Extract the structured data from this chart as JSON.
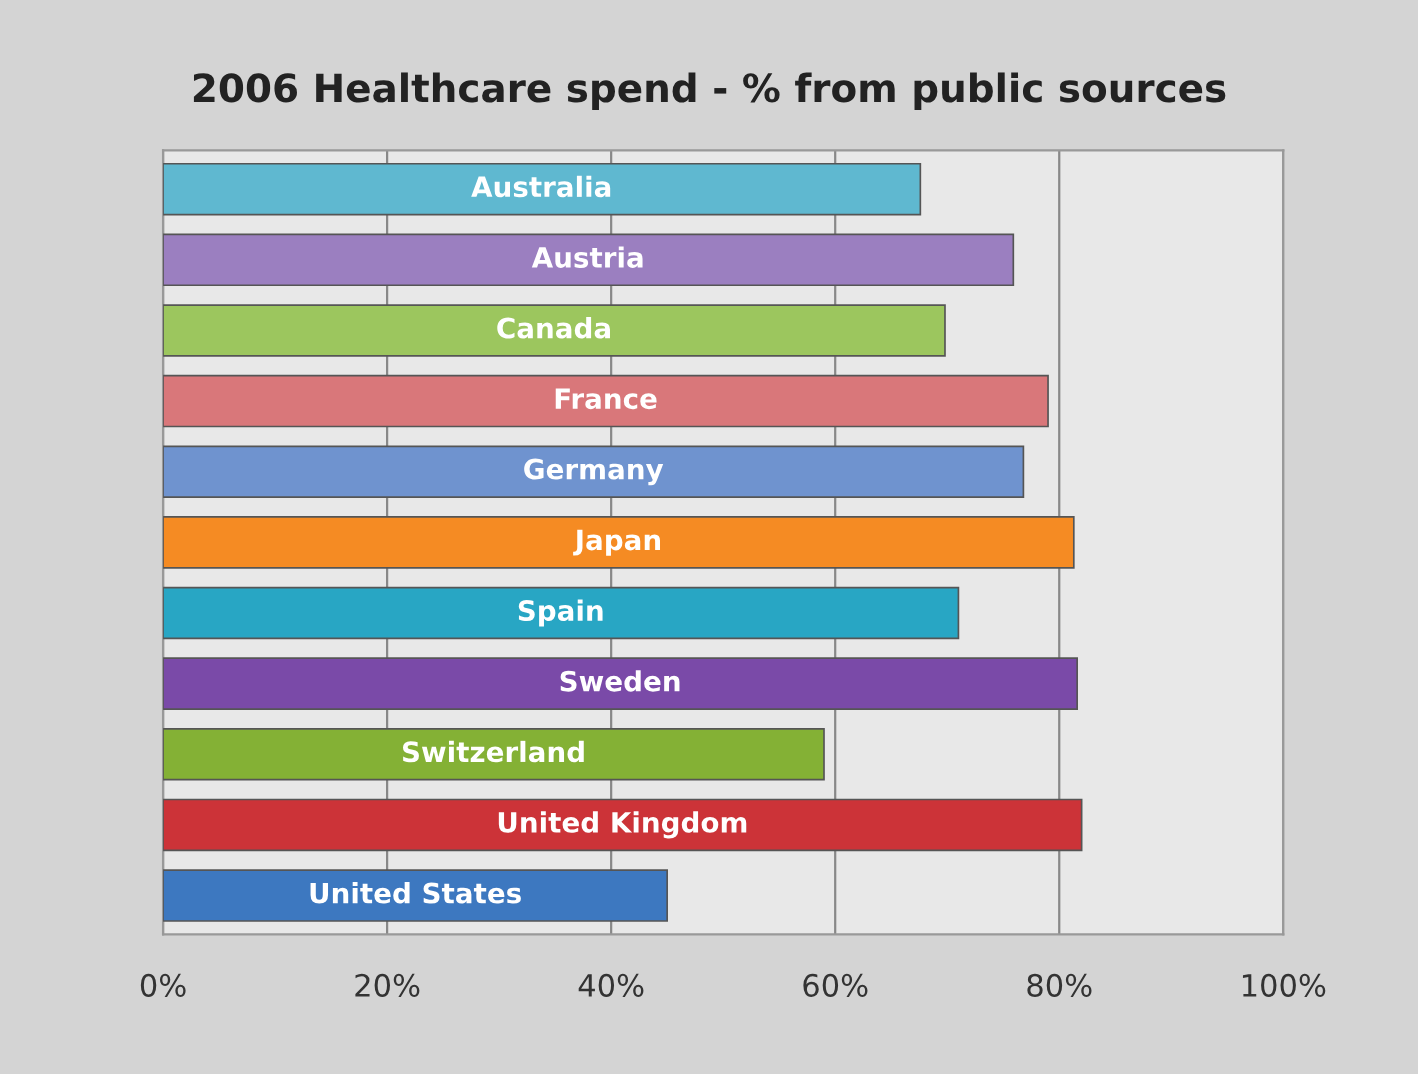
{
  "chart_data": {
    "type": "bar",
    "orientation": "horizontal",
    "title": "2006 Healthcare spend - % from public sources",
    "categories": [
      "Australia",
      "Austria",
      "Canada",
      "France",
      "Germany",
      "Japan",
      "Spain",
      "Sweden",
      "Switzerland",
      "United Kingdom",
      "United States"
    ],
    "values": [
      67.6,
      75.9,
      69.8,
      79.0,
      76.8,
      81.3,
      71.0,
      81.6,
      59.0,
      82.0,
      45.0
    ],
    "colors": [
      "#5fb8d0",
      "#9b7fc0",
      "#9cc65e",
      "#d9777a",
      "#6f93cf",
      "#f58b23",
      "#28a6c4",
      "#7a4aa8",
      "#84b135",
      "#cc3338",
      "#3d78c0"
    ],
    "xlim": [
      0,
      100
    ],
    "xticks": [
      {
        "value": 0,
        "label": "0%"
      },
      {
        "value": 20,
        "label": "20%"
      },
      {
        "value": 40,
        "label": "40%"
      },
      {
        "value": 60,
        "label": "60%"
      },
      {
        "value": 80,
        "label": "80%"
      },
      {
        "value": 100,
        "label": "100%"
      }
    ],
    "grid": "x",
    "tick_labels": "x"
  }
}
